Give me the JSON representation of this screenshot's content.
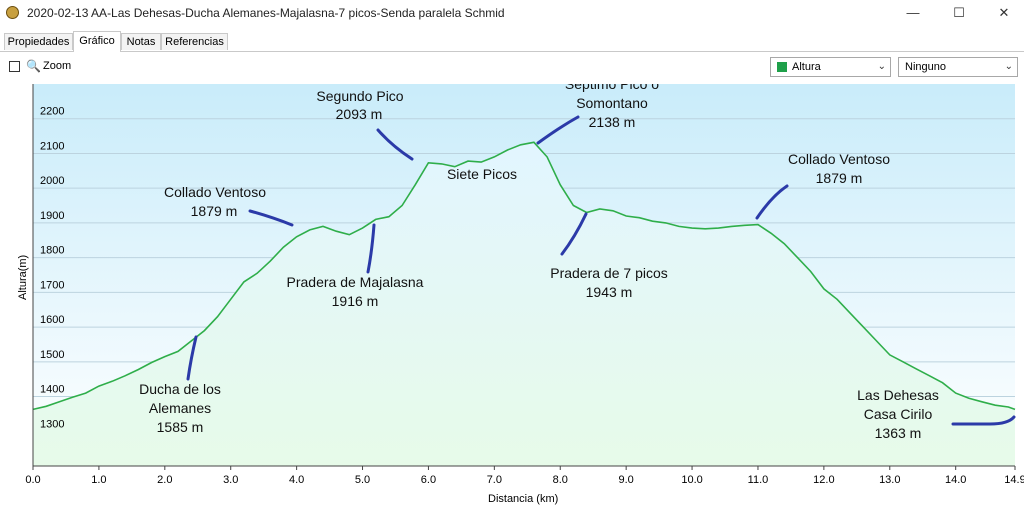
{
  "window": {
    "title": "2020-02-13 AA-Las Dehesas-Ducha Alemanes-Majalasna-7 picos-Senda paralela Schmid",
    "controls": {
      "minimize": "—",
      "maximize": "☐",
      "close": "✕"
    }
  },
  "tabs": [
    {
      "label": "Propiedades",
      "active": false
    },
    {
      "label": "Gráfico",
      "active": true
    },
    {
      "label": "Notas",
      "active": false
    },
    {
      "label": "Referencias",
      "active": false
    }
  ],
  "toolbar": {
    "zoom_checked": false,
    "zoom_label": "Zoom",
    "series_select": {
      "value": "Altura",
      "swatch_color": "#1fa04a"
    },
    "secondary_select": {
      "value": "Ninguno"
    }
  },
  "colors": {
    "line": "#2fae4a",
    "fill_top": "#c9ecfa",
    "fill_bottom": "#ffffff",
    "area_top": "#e2f5ff",
    "area_bottom": "#e7fbe9",
    "grid": "#bcd3df",
    "annotation_pen": "#2b3aa8"
  },
  "chart_data": {
    "type": "area",
    "xlabel": "Distancia  (km)",
    "ylabel": "Altura(m)",
    "xlim": [
      0,
      14.9
    ],
    "ylim": [
      1200,
      2300
    ],
    "x_ticks": [
      "0.0",
      "1.0",
      "2.0",
      "3.0",
      "4.0",
      "5.0",
      "6.0",
      "7.0",
      "8.0",
      "9.0",
      "10.0",
      "11.0",
      "12.0",
      "13.0",
      "14.0",
      "14.9"
    ],
    "y_ticks": [
      "1300",
      "1400",
      "1500",
      "1600",
      "1700",
      "1800",
      "1900",
      "2000",
      "2100",
      "2200"
    ],
    "grid": true,
    "legend": "none",
    "series": [
      {
        "x": [
          0.0,
          0.2,
          0.4,
          0.6,
          0.8,
          1.0,
          1.2,
          1.4,
          1.6,
          1.8,
          2.0,
          2.2,
          2.4,
          2.6,
          2.8,
          3.0,
          3.2,
          3.4,
          3.6,
          3.8,
          4.0,
          4.2,
          4.4,
          4.6,
          4.8,
          5.0,
          5.2,
          5.4,
          5.6,
          5.8,
          6.0,
          6.2,
          6.4,
          6.6,
          6.8,
          7.0,
          7.2,
          7.4,
          7.6,
          7.8,
          8.0,
          8.2,
          8.4,
          8.6,
          8.8,
          9.0,
          9.2,
          9.4,
          9.6,
          9.8,
          10.0,
          10.2,
          10.4,
          10.6,
          10.8,
          11.0,
          11.2,
          11.4,
          11.6,
          11.8,
          12.0,
          12.2,
          12.4,
          12.6,
          12.8,
          13.0,
          13.2,
          13.4,
          13.6,
          13.8,
          14.0,
          14.2,
          14.4,
          14.6,
          14.8,
          14.9
        ],
        "y": [
          1363,
          1372,
          1385,
          1398,
          1410,
          1430,
          1444,
          1460,
          1478,
          1498,
          1515,
          1530,
          1560,
          1590,
          1630,
          1680,
          1730,
          1755,
          1790,
          1830,
          1860,
          1880,
          1890,
          1876,
          1866,
          1885,
          1910,
          1918,
          1950,
          2010,
          2073,
          2070,
          2062,
          2078,
          2075,
          2090,
          2110,
          2125,
          2132,
          2090,
          2010,
          1950,
          1930,
          1940,
          1935,
          1920,
          1915,
          1905,
          1900,
          1890,
          1885,
          1883,
          1885,
          1890,
          1893,
          1895,
          1870,
          1840,
          1800,
          1760,
          1710,
          1680,
          1640,
          1600,
          1560,
          1520,
          1500,
          1480,
          1460,
          1440,
          1410,
          1395,
          1385,
          1375,
          1370,
          1363
        ]
      }
    ],
    "annotations": [
      {
        "lines": [
          "Segundo Pico",
          "2093 m"
        ]
      },
      {
        "lines": [
          "Septimo Pico o",
          "Somontano",
          "2138 m"
        ]
      },
      {
        "lines": [
          "Siete Picos"
        ]
      },
      {
        "lines": [
          "Collado Ventoso",
          "1879 m"
        ]
      },
      {
        "lines": [
          "Collado Ventoso",
          "1879 m"
        ]
      },
      {
        "lines": [
          "Pradera de Majalasna",
          "1916 m"
        ]
      },
      {
        "lines": [
          "Pradera de 7 picos",
          "1943 m"
        ]
      },
      {
        "lines": [
          "Ducha de los",
          "Alemanes",
          "1585 m"
        ]
      },
      {
        "lines": [
          "Las Dehesas",
          "Casa Cirilo",
          "1363 m"
        ]
      }
    ]
  }
}
